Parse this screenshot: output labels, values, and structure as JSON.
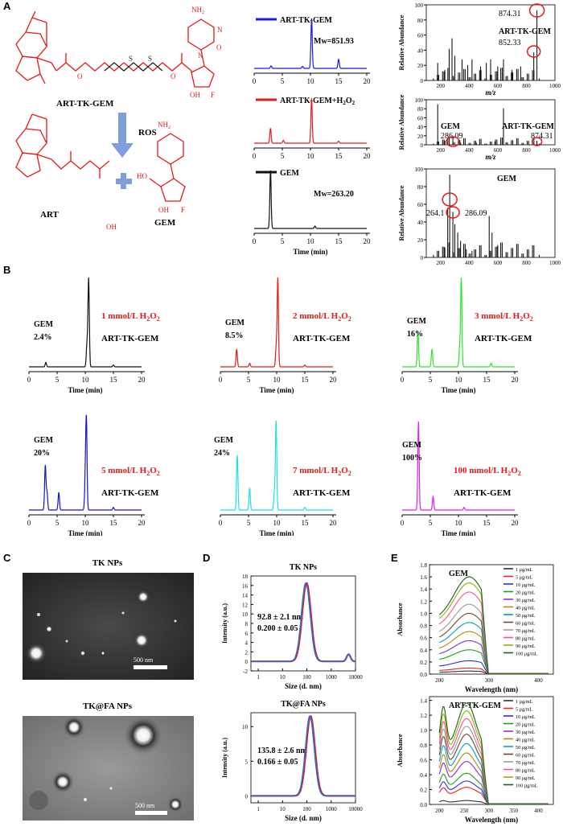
{
  "figure": {
    "panels": {
      "A": "A",
      "B": "B",
      "C": "C",
      "D": "D",
      "E": "E"
    }
  },
  "panelA": {
    "structures": {
      "conjugate_label": "ART-TK-GEM",
      "ros_label": "ROS",
      "art_label": "ART",
      "gem_label": "GEM",
      "atoms": {
        "nh2": "NH",
        "sub2": "2",
        "n": "N",
        "o": "O",
        "oh": "OH",
        "f": "F",
        "h": "H",
        "s": "S",
        "ho": "HO"
      }
    },
    "hplc": {
      "xlabel": "Time (min)",
      "traces": [
        {
          "legend": "ART-TK-GEM",
          "color": "#1a1adb",
          "note": "Mw=851.93",
          "peaks": [
            [
              10.2,
              1.0
            ],
            [
              15.0,
              0.18
            ],
            [
              3.0,
              0.05
            ],
            [
              8.6,
              0.04
            ]
          ]
        },
        {
          "legend": "ART-TK-GEM+H",
          "legend_sub": "2",
          "legend_tail": "O",
          "legend_sub2": "2",
          "color": "#e31a1a",
          "note": "",
          "peaks": [
            [
              2.9,
              0.3
            ],
            [
              5.2,
              0.06
            ],
            [
              10.2,
              0.9
            ],
            [
              15.0,
              0.04
            ]
          ]
        },
        {
          "legend": "GEM",
          "color": "#111111",
          "note": "Mw=263.20",
          "peaks": [
            [
              2.9,
              1.0
            ],
            [
              10.8,
              0.04
            ]
          ]
        }
      ],
      "xticks": [
        0,
        5,
        10,
        15,
        20
      ]
    },
    "ms": {
      "xlabel": "m/z",
      "ylabel": "Relative Abundance",
      "yticks": [
        0,
        20,
        40,
        60,
        80,
        100
      ],
      "spectra": [
        {
          "xticks": [
            200,
            400,
            600,
            800,
            1000
          ],
          "labels": [
            "874.31",
            "ART-TK-GEM",
            "852.33"
          ]
        },
        {
          "xticks": [
            200,
            400,
            600,
            800,
            1000
          ],
          "labels": [
            "GEM",
            "286.09",
            "ART-TK-GEM",
            "874.31"
          ]
        },
        {
          "xticks": [
            200,
            400,
            600,
            800,
            1000
          ],
          "labels": [
            "GEM",
            "264.1",
            "286.09"
          ]
        }
      ]
    }
  },
  "panelB": {
    "xlabel": "Time (min)",
    "xticks": [
      0,
      5,
      10,
      15,
      20
    ],
    "gem_word": "GEM",
    "conj_label": "ART-TK-GEM",
    "h2o2_sub": "2",
    "plots": [
      {
        "conc": "1 mmol/L H",
        "pct": "2.4%",
        "color": "#111111",
        "peaks": [
          [
            3.0,
            0.05
          ],
          [
            10.3,
            0.25
          ],
          [
            10.6,
            1.0
          ],
          [
            15.0,
            0.02
          ]
        ]
      },
      {
        "conc": "2 mmol/L H",
        "pct": "8.5%",
        "color": "#e31a1a",
        "peaks": [
          [
            2.9,
            0.2
          ],
          [
            5.2,
            0.04
          ],
          [
            9.9,
            0.2
          ],
          [
            10.2,
            1.0
          ],
          [
            15.0,
            0.02
          ]
        ]
      },
      {
        "conc": "3 mmol/L H",
        "pct": "16%",
        "color": "#2ee62e",
        "peaks": [
          [
            2.8,
            0.4
          ],
          [
            5.3,
            0.2
          ],
          [
            10.2,
            0.2
          ],
          [
            10.5,
            1.0
          ],
          [
            15.8,
            0.04
          ]
        ]
      },
      {
        "conc": "5 mmol/L H",
        "pct": "20%",
        "color": "#1414c8",
        "peaks": [
          [
            2.9,
            0.5
          ],
          [
            3.2,
            0.2
          ],
          [
            5.3,
            0.2
          ],
          [
            10.2,
            1.0
          ],
          [
            10.0,
            0.3
          ],
          [
            15.0,
            0.03
          ]
        ]
      },
      {
        "conc": "7 mmol/L H",
        "pct": "24%",
        "color": "#1ee0e6",
        "peaks": [
          [
            3.0,
            0.62
          ],
          [
            5.2,
            0.25
          ],
          [
            9.9,
            1.0
          ],
          [
            9.6,
            0.2
          ],
          [
            15.0,
            0.03
          ]
        ]
      },
      {
        "conc": "100 mmol/L H",
        "pct": "100%",
        "color": "#e61ee6",
        "peaks": [
          [
            2.9,
            1.0
          ],
          [
            5.5,
            0.15
          ],
          [
            11.0,
            0.03
          ]
        ]
      }
    ]
  },
  "panelC": {
    "top": {
      "title": "TK NPs",
      "scale": "500 nm"
    },
    "bottom": {
      "title": "TK@FA NPs",
      "scale": "500 nm"
    }
  },
  "panelD": {
    "xlabel": "Size (d. nm)",
    "ylabel": "Intensity (a.u.)",
    "xticks": [
      "1",
      "10",
      "100",
      "1000",
      "10000"
    ],
    "plots": [
      {
        "title": "TK NPs",
        "size": "92.8 ± 2.1 nm",
        "pdi": "0.200 ± 0.05",
        "yticks": [
          -2,
          0,
          2,
          4,
          6,
          8,
          10,
          12,
          14,
          16,
          18
        ],
        "ylim": [
          -2,
          18
        ],
        "peak": {
          "center_nm": 92.8,
          "height": 16.5
        },
        "tail": {
          "center_nm": 5200,
          "height": 1.5
        }
      },
      {
        "title": "TK@FA NPs",
        "size": "135.8 ± 2.6 nm",
        "pdi": "0.166 ± 0.05",
        "yticks": [
          0,
          5,
          10
        ],
        "ylim": [
          -1,
          12
        ],
        "peak": {
          "center_nm": 135.8,
          "height": 11.5
        }
      }
    ]
  },
  "panelE": {
    "xlabel": "Wavelength (nm)",
    "ylabel": "Absorbance",
    "legend": [
      "1 μg/mL",
      "5 μg/mL",
      "10 μg/mL",
      "20 μg/mL",
      "30 μg/mL",
      "40 μg/mL",
      "50 μg/mL",
      "60 μg/mL",
      "70 μg/mL",
      "80 μg/mL",
      "90 μg/mL",
      "100 μg/mL"
    ],
    "colors": [
      "#333333",
      "#e3241c",
      "#2b2be0",
      "#1d9e1d",
      "#8a2be2",
      "#b8860b",
      "#00a0c8",
      "#6b4a2a",
      "#999999",
      "#ff4d94",
      "#8db600",
      "#1e5e1e"
    ],
    "plots": [
      {
        "title": "GEM",
        "yticks": [
          0.0,
          0.2,
          0.4,
          0.6,
          0.8,
          1.0,
          1.2,
          1.4,
          1.6,
          1.8
        ],
        "ylim": [
          0,
          1.8
        ],
        "xticks": [
          200,
          300,
          400
        ],
        "max_abs": [
          0.05,
          0.1,
          0.22,
          0.4,
          0.55,
          0.7,
          0.85,
          1.0,
          1.15,
          1.35,
          1.5,
          1.6
        ]
      },
      {
        "title": "ART-TK-GEM",
        "yticks": [
          0.0,
          0.2,
          0.4,
          0.6,
          0.8,
          1.0,
          1.2,
          1.4
        ],
        "ylim": [
          0,
          1.45
        ],
        "xticks": [
          200,
          250,
          300,
          350,
          400
        ],
        "max_abs": [
          0.05,
          0.22,
          0.3,
          0.4,
          0.55,
          0.66,
          0.78,
          0.9,
          1.0,
          1.1,
          1.2,
          1.3
        ]
      }
    ]
  }
}
